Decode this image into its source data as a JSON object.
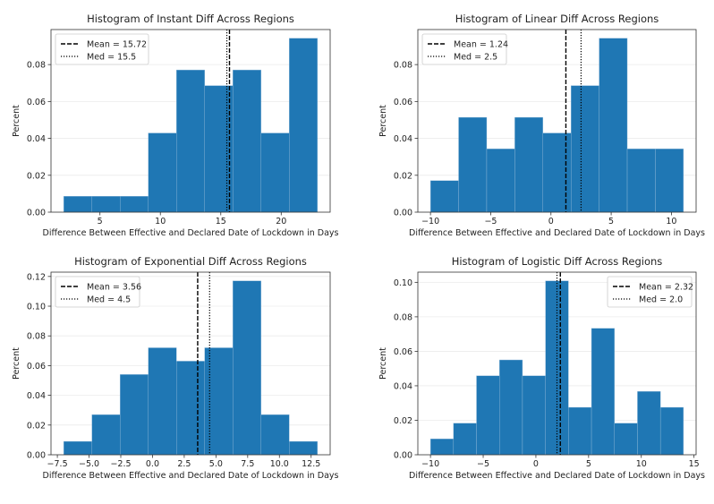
{
  "chart_data": [
    {
      "type": "bar",
      "title": "Histogram of Instant Diff Across Regions",
      "xlabel": "Difference Between Effective and Declared Date of Lockdown in Days",
      "ylabel": "Percent",
      "bin_edges": [
        2,
        4.333,
        6.667,
        9,
        11.333,
        13.667,
        16,
        18.333,
        20.667,
        23
      ],
      "values": [
        0.0086,
        0.0086,
        0.0086,
        0.0429,
        0.0771,
        0.0686,
        0.0771,
        0.0429,
        0.0943
      ],
      "xlim": [
        0.95,
        24.05
      ],
      "ylim": [
        0,
        0.099
      ],
      "xticks": [
        5,
        10,
        15,
        20
      ],
      "xtick_labels": [
        "5",
        "10",
        "15",
        "20"
      ],
      "yticks": [
        0,
        0.02,
        0.04,
        0.06,
        0.08
      ],
      "ytick_labels": [
        "0.00",
        "0.02",
        "0.04",
        "0.06",
        "0.08"
      ],
      "mean": 15.72,
      "median": 15.5,
      "legend": [
        "Mean = 15.72",
        "Med = 15.5"
      ],
      "legend_position": "top-left",
      "grid": "horizontal",
      "color": "#1f77b4"
    },
    {
      "type": "bar",
      "title": "Histogram of Linear Diff Across Regions",
      "xlabel": "Difference Between Effective and Declared Date of Lockdown in Days",
      "ylabel": "Percent",
      "bin_edges": [
        -10,
        -7.667,
        -5.333,
        -3,
        -0.667,
        1.667,
        4,
        6.333,
        8.667,
        11
      ],
      "values": [
        0.0171,
        0.0514,
        0.0343,
        0.0514,
        0.0429,
        0.0686,
        0.0943,
        0.0343,
        0.0343
      ],
      "xlim": [
        -11.05,
        12.05
      ],
      "ylim": [
        0,
        0.099
      ],
      "xticks": [
        -10,
        -5,
        0,
        5,
        10
      ],
      "xtick_labels": [
        "−10",
        "−5",
        "0",
        "5",
        "10"
      ],
      "yticks": [
        0,
        0.02,
        0.04,
        0.06,
        0.08
      ],
      "ytick_labels": [
        "0.00",
        "0.02",
        "0.04",
        "0.06",
        "0.08"
      ],
      "mean": 1.24,
      "median": 2.5,
      "legend": [
        "Mean = 1.24",
        "Med = 2.5"
      ],
      "legend_position": "top-left",
      "grid": "horizontal",
      "color": "#1f77b4"
    },
    {
      "type": "bar",
      "title": "Histogram of Exponential Diff Across Regions",
      "xlabel": "Difference Between Effective and Declared Date of Lockdown in Days",
      "ylabel": "Percent",
      "bin_edges": [
        -7,
        -4.778,
        -2.556,
        -0.333,
        1.889,
        4.111,
        6.333,
        8.556,
        10.778,
        13
      ],
      "values": [
        0.009,
        0.027,
        0.054,
        0.072,
        0.063,
        0.072,
        0.117,
        0.027,
        0.009
      ],
      "xlim": [
        -8,
        14
      ],
      "ylim": [
        0,
        0.1229
      ],
      "xticks": [
        -7.5,
        -5,
        -2.5,
        0,
        2.5,
        5,
        7.5,
        10,
        12.5
      ],
      "xtick_labels": [
        "−7.5",
        "−5.0",
        "−2.5",
        "0.0",
        "2.5",
        "5.0",
        "7.5",
        "10.0",
        "12.5"
      ],
      "yticks": [
        0,
        0.02,
        0.04,
        0.06,
        0.08,
        0.1,
        0.12
      ],
      "ytick_labels": [
        "0.00",
        "0.02",
        "0.04",
        "0.06",
        "0.08",
        "0.10",
        "0.12"
      ],
      "mean": 3.56,
      "median": 4.5,
      "legend": [
        "Mean = 3.56",
        "Med = 4.5"
      ],
      "legend_position": "top-left",
      "grid": "horizontal",
      "color": "#1f77b4"
    },
    {
      "type": "bar",
      "title": "Histogram of Logistic Diff Across Regions",
      "xlabel": "Difference Between Effective and Declared Date of Lockdown in Days",
      "ylabel": "Percent",
      "bin_edges": [
        -10,
        -7.818,
        -5.636,
        -3.455,
        -1.273,
        0.909,
        3.091,
        5.273,
        7.455,
        9.636,
        11.818,
        14
      ],
      "values": [
        0.0092,
        0.0183,
        0.0458,
        0.055,
        0.0458,
        0.1008,
        0.0275,
        0.0733,
        0.0183,
        0.0367,
        0.0275
      ],
      "xlim": [
        -11.2,
        15.2
      ],
      "ylim": [
        0,
        0.1059
      ],
      "xticks": [
        -10,
        -5,
        0,
        5,
        10,
        15
      ],
      "xtick_labels": [
        "−10",
        "−5",
        "0",
        "5",
        "10",
        "15"
      ],
      "yticks": [
        0,
        0.02,
        0.04,
        0.06,
        0.08,
        0.1
      ],
      "ytick_labels": [
        "0.00",
        "0.02",
        "0.04",
        "0.06",
        "0.08",
        "0.10"
      ],
      "mean": 2.32,
      "median": 2.0,
      "legend": [
        "Mean = 2.32",
        "Med = 2.0"
      ],
      "legend_position": "top-right",
      "grid": "horizontal",
      "color": "#1f77b4"
    }
  ]
}
